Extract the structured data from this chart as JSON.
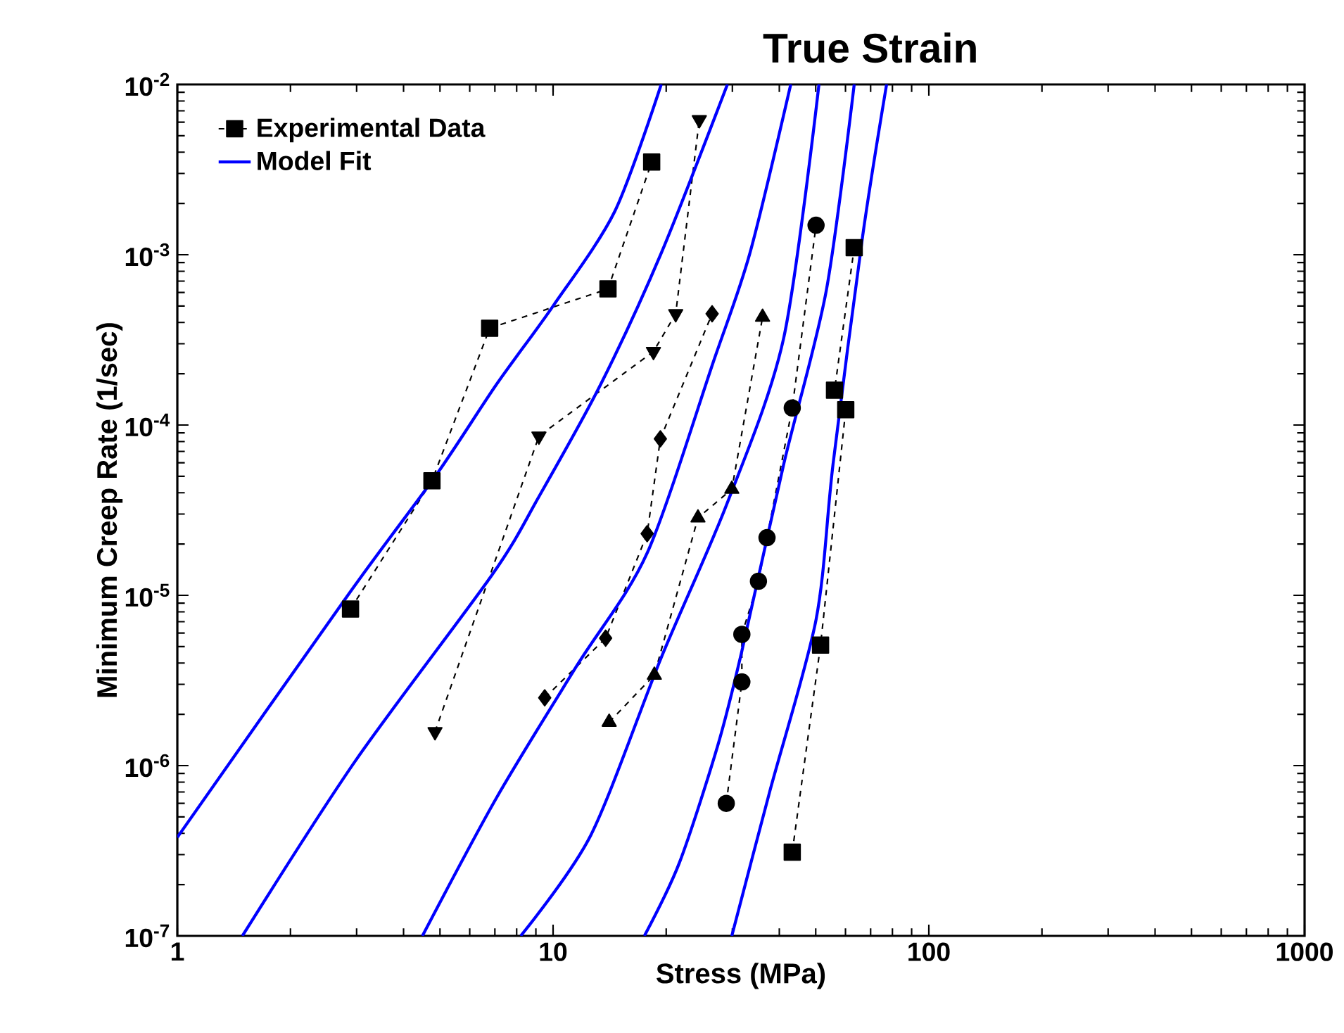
{
  "chart_data": {
    "type": "line",
    "title": "True Strain",
    "xlabel": "Stress  (MPa)",
    "ylabel": "Minimum Creep Rate  (1/sec)",
    "log": "xy",
    "grid": false,
    "legend": "top left",
    "xlim": [
      1,
      1000
    ],
    "ylim": [
      1e-07,
      0.01
    ],
    "xticks": [
      1,
      10,
      100,
      1000
    ],
    "yticks": [
      {
        "value": 1e-07,
        "label": "10$^{-7}$"
      },
      {
        "value": 1e-06,
        "label": "10$^{-6}$"
      },
      {
        "value": 1e-05,
        "label": "10$^{-5}$"
      },
      {
        "value": 0.0001,
        "label": "10$^{-4}$"
      },
      {
        "value": 0.001,
        "label": "10$^{-3}$"
      },
      {
        "value": 0.01,
        "label": "10$^{-2}$"
      }
    ],
    "series": [
      {
        "color": "#000000",
        "marker": "square",
        "line_style": "dashed",
        "x": [
          2.89,
          4.76,
          6.78,
          14.0,
          18.3
        ],
        "values": [
          8.3e-06,
          4.7e-05,
          0.00037,
          0.00063,
          0.0035
        ]
      },
      {
        "color": "#000000",
        "marker": "triangle-down",
        "line_style": "dashed",
        "x": [
          4.85,
          9.17,
          18.5,
          21.2,
          24.5
        ],
        "values": [
          1.58e-06,
          8.6e-05,
          0.00027,
          0.00045,
          0.0062
        ]
      },
      {
        "color": "#000000",
        "marker": "diamond",
        "line_style": "dashed",
        "x": [
          9.5,
          13.8,
          17.8,
          19.3,
          26.5
        ],
        "values": [
          2.5e-06,
          5.6e-06,
          2.3e-05,
          8.3e-05,
          0.00045
        ]
      },
      {
        "color": "#000000",
        "marker": "triangle",
        "line_style": "dashed",
        "x": [
          14.1,
          18.6,
          24.3,
          29.9,
          36.1
        ],
        "values": [
          1.8e-06,
          3.4e-06,
          2.85e-05,
          4.2e-05,
          0.00043
        ]
      },
      {
        "color": "#000000",
        "marker": "circle",
        "line_style": "dashed",
        "x": [
          28.9,
          31.8,
          31.8,
          35.2,
          37.1,
          43.3,
          50.1
        ],
        "values": [
          6e-07,
          3.1e-06,
          5.9e-06,
          1.21e-05,
          2.18e-05,
          0.000126,
          0.00149
        ]
      },
      {
        "name": "Experimental Data",
        "color": "#000000",
        "marker": "square",
        "line_style": "dashed",
        "x": [
          43.3,
          51.5,
          60.1,
          56.1,
          63.3
        ],
        "values": [
          3.1e-07,
          5.1e-06,
          0.000123,
          0.00016,
          0.0011
        ]
      },
      {
        "name": "Model Fit",
        "color": "#0000ff",
        "marker": "none",
        "line_style": "solid",
        "x": [
          1,
          2.86,
          4.89,
          7.08,
          10,
          14.6,
          19.4
        ],
        "values": [
          3.79e-07,
          1.02e-05,
          5.1e-05,
          0.000174,
          0.0005,
          0.0018,
          0.01
        ]
      },
      {
        "color": "#0000ff",
        "marker": "none",
        "line_style": "solid",
        "x": [
          1.49,
          2.99,
          6.9,
          9.17,
          13.4,
          19.4,
          29.1
        ],
        "values": [
          1e-07,
          1.08e-06,
          1.33e-05,
          3.8e-05,
          0.000174,
          0.00102,
          0.01
        ]
      },
      {
        "color": "#0000ff",
        "marker": "none",
        "line_style": "solid",
        "x": [
          4.49,
          7.08,
          11.6,
          17.8,
          26.7,
          33.4,
          42.9
        ],
        "values": [
          1e-07,
          6.5e-07,
          3.9e-06,
          1.77e-05,
          0.000235,
          0.00102,
          0.01
        ]
      },
      {
        "color": "#0000ff",
        "marker": "none",
        "line_style": "solid",
        "x": [
          8.2,
          12.6,
          19.4,
          29.1,
          41.1,
          51.0
        ],
        "values": [
          1e-07,
          3.9e-07,
          4.3e-06,
          3.5e-05,
          0.000325,
          0.01
        ]
      },
      {
        "color": "#0000ff",
        "marker": "none",
        "line_style": "solid",
        "x": [
          17.5,
          21.7,
          27.4,
          31.8,
          41.1,
          53.3,
          63.3
        ],
        "values": [
          1e-07,
          2.7e-07,
          1.3e-06,
          4.7e-06,
          5.9e-05,
          0.00061,
          0.01
        ]
      },
      {
        "color": "#0000ff",
        "marker": "none",
        "line_style": "solid",
        "x": [
          29.9,
          37.7,
          50.1,
          55.6,
          66.7,
          77.2
        ],
        "values": [
          1e-07,
          7e-07,
          7.2e-06,
          5.9e-05,
          0.0013,
          0.01
        ]
      }
    ]
  }
}
